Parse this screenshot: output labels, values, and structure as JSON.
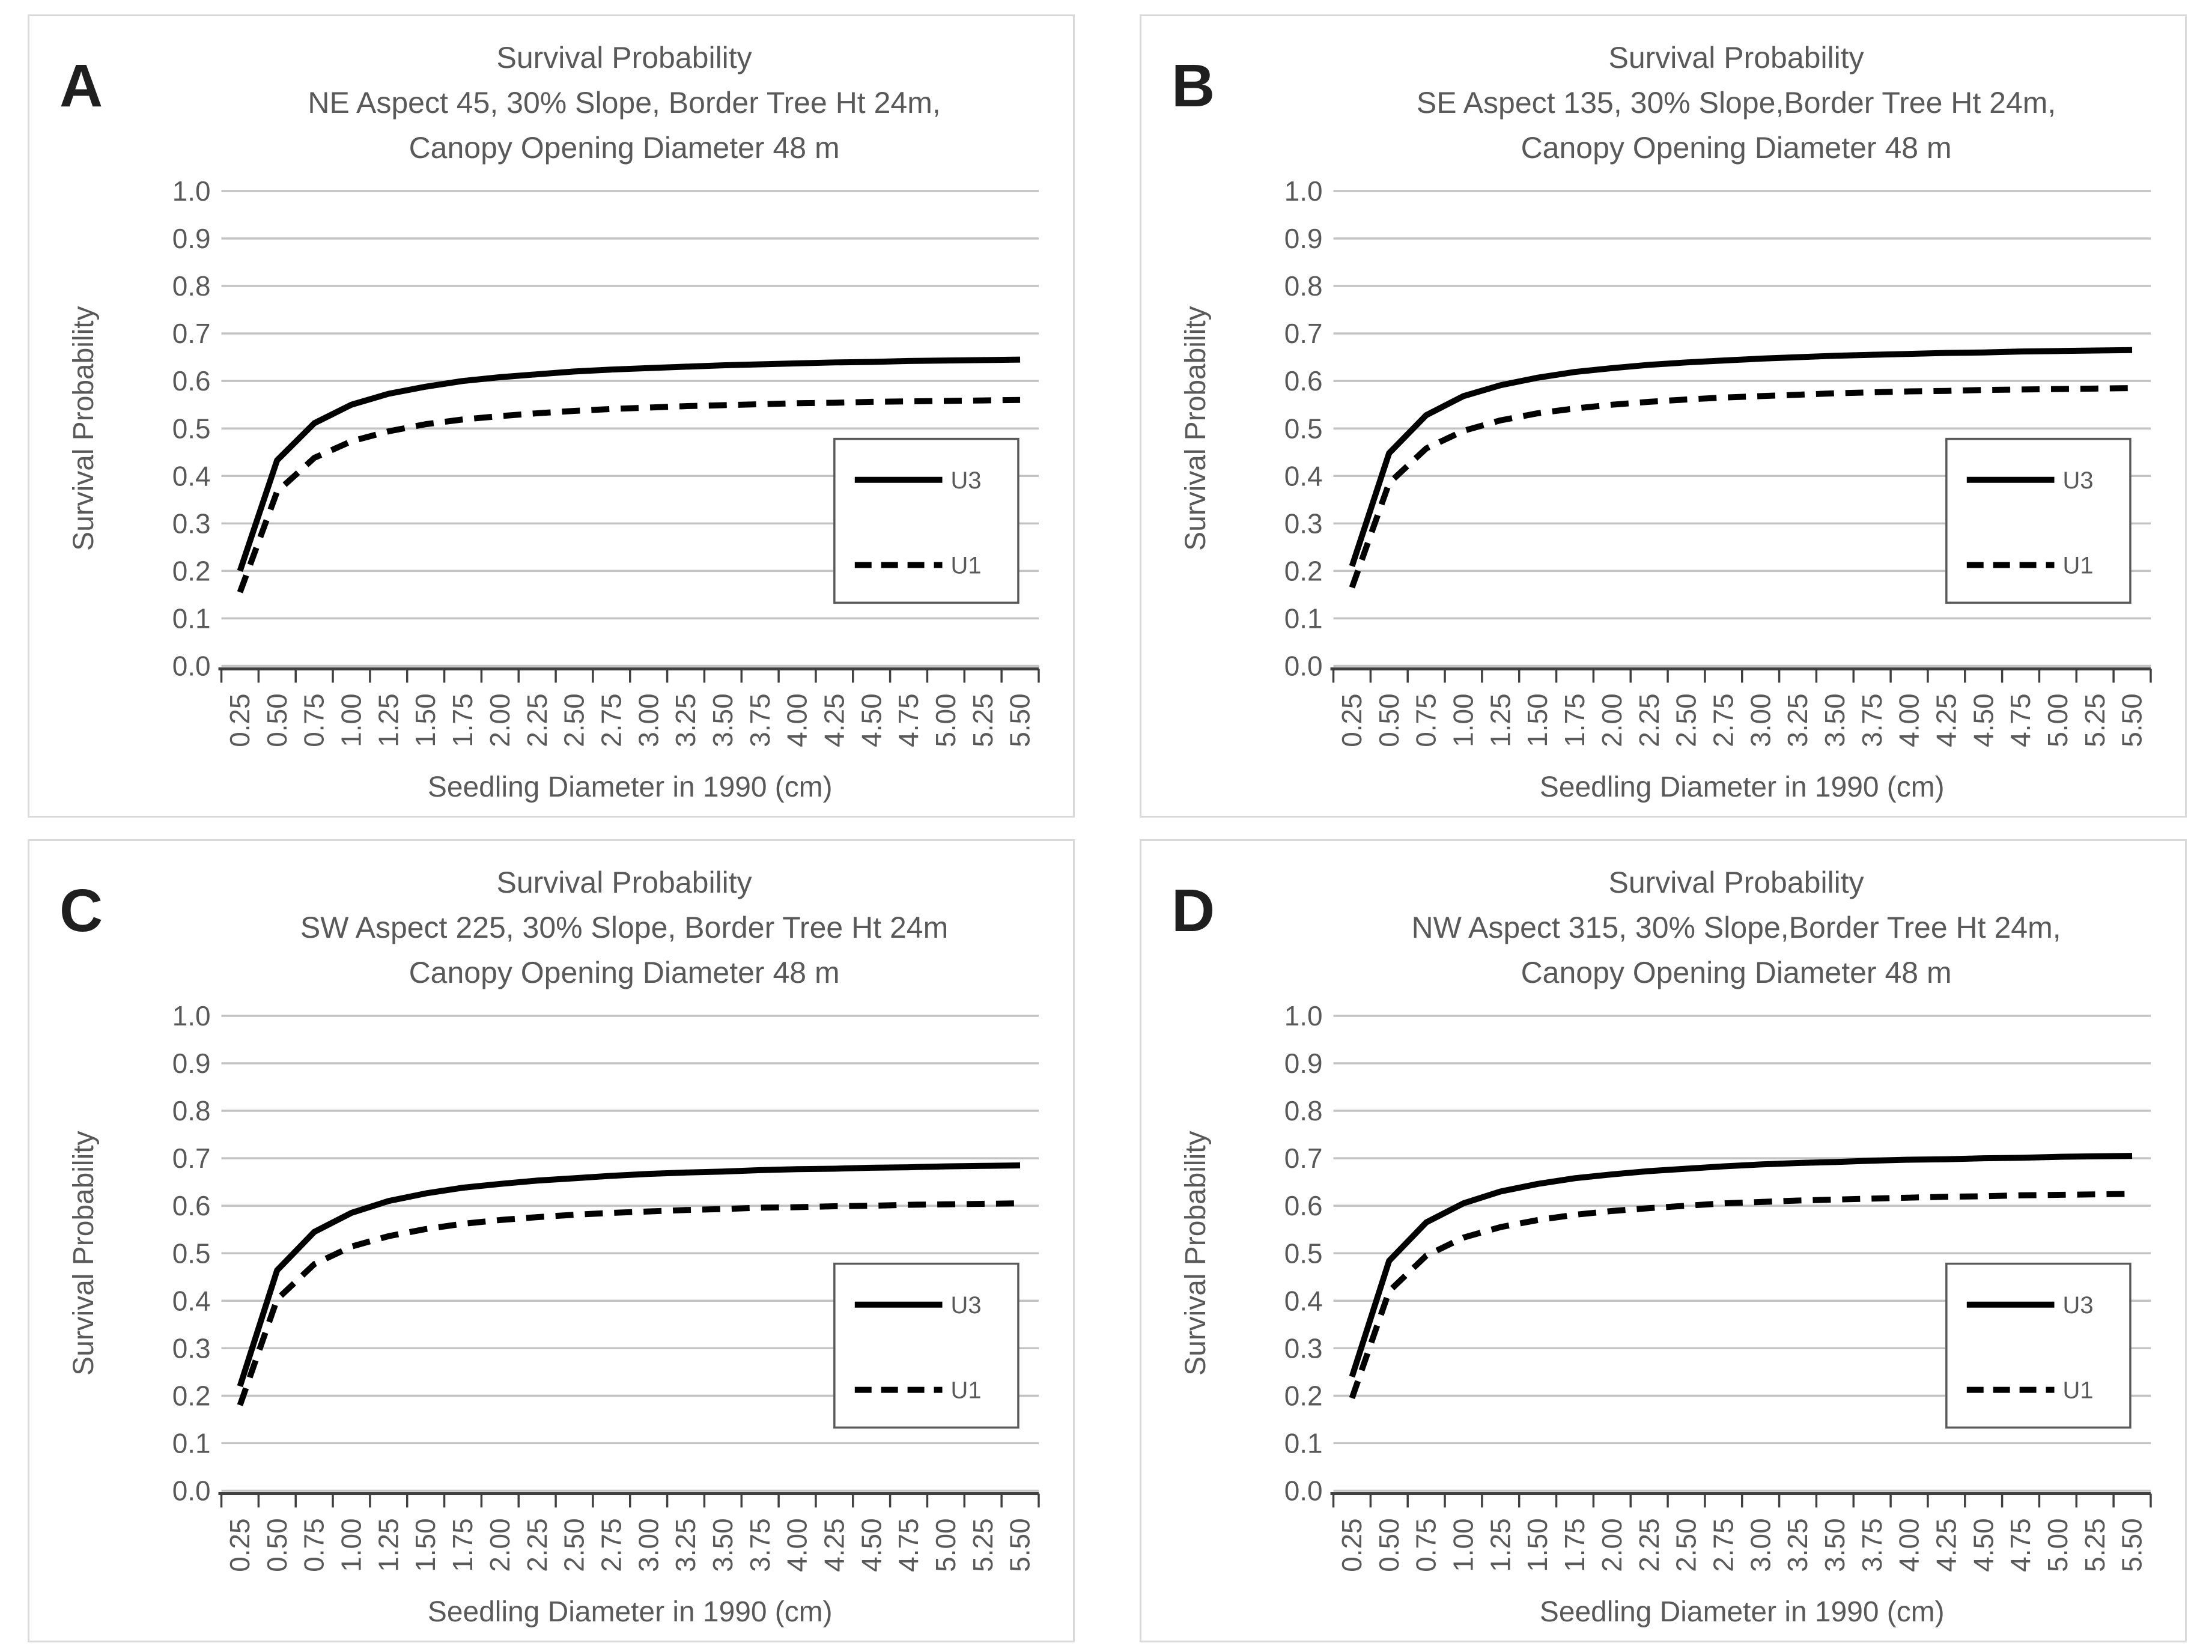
{
  "page": {
    "background": "#ffffff"
  },
  "colors": {
    "panel_border": "#d9d9d9",
    "gridline": "#c3c3c3",
    "axis_line": "#404040",
    "tick": "#404040",
    "label_text": "#595959",
    "title_text": "#595959",
    "panel_letter": "#1f1f1f",
    "series_line": "#000000",
    "legend_border": "#595959",
    "legend_fill": "#ffffff"
  },
  "panels": [
    {
      "letter": "A",
      "title_lines": [
        "Survival Probability",
        "NE Aspect 45, 30% Slope, Border Tree Ht 24m,",
        "Canopy Opening Diameter 48 m"
      ],
      "y_axis_title": "Survival Probability",
      "x_axis_title": "Seedling Diameter in 1990 (cm)"
    },
    {
      "letter": "B",
      "title_lines": [
        "Survival Probability",
        "SE Aspect 135, 30% Slope,Border Tree Ht 24m,",
        "Canopy Opening Diameter 48 m"
      ],
      "y_axis_title": "Survival Probability",
      "x_axis_title": "Seedling Diameter in 1990 (cm)"
    },
    {
      "letter": "C",
      "title_lines": [
        "Survival Probability",
        "SW Aspect 225, 30% Slope, Border Tree Ht 24m",
        "Canopy Opening Diameter 48 m"
      ],
      "y_axis_title": "Survival Probability",
      "x_axis_title": "Seedling Diameter in 1990 (cm)"
    },
    {
      "letter": "D",
      "title_lines": [
        "Survival Probability",
        "NW Aspect 315, 30% Slope,Border Tree Ht 24m,",
        "Canopy Opening Diameter 48 m"
      ],
      "y_axis_title": "Survival Probability",
      "x_axis_title": "Seedling Diameter in 1990 (cm)"
    }
  ],
  "chart_data": [
    {
      "type": "line",
      "title": "Survival Probability NE Aspect 45, 30% Slope, Border Tree Ht 24m, Canopy Opening Diameter 48 m",
      "xlabel": "Seedling Diameter in 1990 (cm)",
      "ylabel": "Survival Probability",
      "ylim": [
        0.0,
        1.0
      ],
      "y_tick_labels": [
        "1.0",
        "0.9",
        "0.8",
        "0.7",
        "0.6",
        "0.5",
        "0.4",
        "0.3",
        "0.2",
        "0.1",
        "0.0"
      ],
      "x": [
        0.25,
        0.5,
        0.75,
        1.0,
        1.25,
        1.5,
        1.75,
        2.0,
        2.25,
        2.5,
        2.75,
        3.0,
        3.25,
        3.5,
        3.75,
        4.0,
        4.25,
        4.5,
        4.75,
        5.0,
        5.25,
        5.5
      ],
      "x_tick_labels": [
        "0.25",
        "0.50",
        "0.75",
        "1.00",
        "1.25",
        "1.50",
        "1.75",
        "2.00",
        "2.25",
        "2.50",
        "2.75",
        "3.00",
        "3.25",
        "3.50",
        "3.75",
        "4.00",
        "4.25",
        "4.50",
        "4.75",
        "5.00",
        "5.25",
        "5.50"
      ],
      "grid": true,
      "legend_position": "inside-right",
      "series": [
        {
          "name": "U3",
          "style": "solid",
          "values": [
            0.2,
            0.433,
            0.511,
            0.55,
            0.573,
            0.588,
            0.6,
            0.608,
            0.614,
            0.62,
            0.624,
            0.627,
            0.63,
            0.633,
            0.635,
            0.637,
            0.639,
            0.64,
            0.642,
            0.643,
            0.644,
            0.645
          ]
        },
        {
          "name": "U1",
          "style": "dashed",
          "values": [
            0.155,
            0.367,
            0.438,
            0.473,
            0.494,
            0.509,
            0.519,
            0.526,
            0.532,
            0.537,
            0.541,
            0.544,
            0.547,
            0.549,
            0.551,
            0.553,
            0.554,
            0.556,
            0.557,
            0.558,
            0.559,
            0.56
          ]
        }
      ]
    },
    {
      "type": "line",
      "title": "Survival Probability SE Aspect 135, 30% Slope,Border Tree Ht 24m, Canopy Opening Diameter 48 m",
      "xlabel": "Seedling Diameter in 1990 (cm)",
      "ylabel": "Survival Probability",
      "ylim": [
        0.0,
        1.0
      ],
      "y_tick_labels": [
        "1.0",
        "0.9",
        "0.8",
        "0.7",
        "0.6",
        "0.5",
        "0.4",
        "0.3",
        "0.2",
        "0.1",
        "0.0"
      ],
      "x": [
        0.25,
        0.5,
        0.75,
        1.0,
        1.25,
        1.5,
        1.75,
        2.0,
        2.25,
        2.5,
        2.75,
        3.0,
        3.25,
        3.5,
        3.75,
        4.0,
        4.25,
        4.5,
        4.75,
        5.0,
        5.25,
        5.5
      ],
      "x_tick_labels": [
        "0.25",
        "0.50",
        "0.75",
        "1.00",
        "1.25",
        "1.50",
        "1.75",
        "2.00",
        "2.25",
        "2.50",
        "2.75",
        "3.00",
        "3.25",
        "3.50",
        "3.75",
        "4.00",
        "4.25",
        "4.50",
        "4.75",
        "5.00",
        "5.25",
        "5.50"
      ],
      "grid": true,
      "legend_position": "inside-right",
      "series": [
        {
          "name": "U3",
          "style": "solid",
          "values": [
            0.21,
            0.448,
            0.528,
            0.568,
            0.591,
            0.607,
            0.619,
            0.627,
            0.634,
            0.639,
            0.643,
            0.647,
            0.65,
            0.653,
            0.655,
            0.657,
            0.659,
            0.66,
            0.662,
            0.663,
            0.664,
            0.665
          ]
        },
        {
          "name": "U1",
          "style": "dashed",
          "values": [
            0.165,
            0.385,
            0.458,
            0.495,
            0.517,
            0.532,
            0.542,
            0.55,
            0.556,
            0.561,
            0.565,
            0.568,
            0.571,
            0.574,
            0.576,
            0.578,
            0.579,
            0.581,
            0.582,
            0.583,
            0.584,
            0.585
          ]
        }
      ]
    },
    {
      "type": "line",
      "title": "Survival Probability SW Aspect 225, 30% Slope, Border Tree Ht 24m Canopy Opening Diameter 48 m",
      "xlabel": "Seedling Diameter in 1990 (cm)",
      "ylabel": "Survival Probability",
      "ylim": [
        0.0,
        1.0
      ],
      "y_tick_labels": [
        "1.0",
        "0.9",
        "0.8",
        "0.7",
        "0.6",
        "0.5",
        "0.4",
        "0.3",
        "0.2",
        "0.1",
        "0.0"
      ],
      "x": [
        0.25,
        0.5,
        0.75,
        1.0,
        1.25,
        1.5,
        1.75,
        2.0,
        2.25,
        2.5,
        2.75,
        3.0,
        3.25,
        3.5,
        3.75,
        4.0,
        4.25,
        4.5,
        4.75,
        5.0,
        5.25,
        5.5
      ],
      "x_tick_labels": [
        "0.25",
        "0.50",
        "0.75",
        "1.00",
        "1.25",
        "1.50",
        "1.75",
        "2.00",
        "2.25",
        "2.50",
        "2.75",
        "3.00",
        "3.25",
        "3.50",
        "3.75",
        "4.00",
        "4.25",
        "4.50",
        "4.75",
        "5.00",
        "5.25",
        "5.50"
      ],
      "grid": true,
      "legend_position": "inside-right",
      "series": [
        {
          "name": "U3",
          "style": "solid",
          "values": [
            0.22,
            0.464,
            0.545,
            0.585,
            0.61,
            0.626,
            0.638,
            0.646,
            0.653,
            0.658,
            0.663,
            0.667,
            0.67,
            0.672,
            0.675,
            0.677,
            0.678,
            0.68,
            0.681,
            0.683,
            0.684,
            0.685
          ]
        },
        {
          "name": "U1",
          "style": "dashed",
          "values": [
            0.18,
            0.403,
            0.477,
            0.514,
            0.536,
            0.551,
            0.562,
            0.57,
            0.576,
            0.581,
            0.585,
            0.588,
            0.591,
            0.593,
            0.596,
            0.597,
            0.599,
            0.6,
            0.602,
            0.603,
            0.604,
            0.605
          ]
        }
      ]
    },
    {
      "type": "line",
      "title": "Survival Probability NW Aspect 315, 30% Slope,Border Tree Ht 24m, Canopy Opening Diameter 48 m",
      "xlabel": "Seedling Diameter in 1990 (cm)",
      "ylabel": "Survival Probability",
      "ylim": [
        0.0,
        1.0
      ],
      "y_tick_labels": [
        "1.0",
        "0.9",
        "0.8",
        "0.7",
        "0.6",
        "0.5",
        "0.4",
        "0.3",
        "0.2",
        "0.1",
        "0.0"
      ],
      "x": [
        0.25,
        0.5,
        0.75,
        1.0,
        1.25,
        1.5,
        1.75,
        2.0,
        2.25,
        2.5,
        2.75,
        3.0,
        3.25,
        3.5,
        3.75,
        4.0,
        4.25,
        4.5,
        4.75,
        5.0,
        5.25,
        5.5
      ],
      "x_tick_labels": [
        "0.25",
        "0.50",
        "0.75",
        "1.00",
        "1.25",
        "1.50",
        "1.75",
        "2.00",
        "2.25",
        "2.50",
        "2.75",
        "3.00",
        "3.25",
        "3.50",
        "3.75",
        "4.00",
        "4.25",
        "4.50",
        "4.75",
        "5.00",
        "5.25",
        "5.50"
      ],
      "grid": true,
      "legend_position": "inside-right",
      "series": [
        {
          "name": "U3",
          "style": "solid",
          "values": [
            0.24,
            0.484,
            0.565,
            0.605,
            0.63,
            0.646,
            0.658,
            0.666,
            0.673,
            0.678,
            0.683,
            0.687,
            0.69,
            0.692,
            0.695,
            0.697,
            0.698,
            0.7,
            0.701,
            0.703,
            0.704,
            0.705
          ]
        },
        {
          "name": "U1",
          "style": "dashed",
          "values": [
            0.195,
            0.42,
            0.495,
            0.533,
            0.555,
            0.57,
            0.581,
            0.589,
            0.595,
            0.6,
            0.605,
            0.608,
            0.611,
            0.613,
            0.615,
            0.617,
            0.619,
            0.62,
            0.622,
            0.623,
            0.624,
            0.625
          ]
        }
      ]
    }
  ]
}
